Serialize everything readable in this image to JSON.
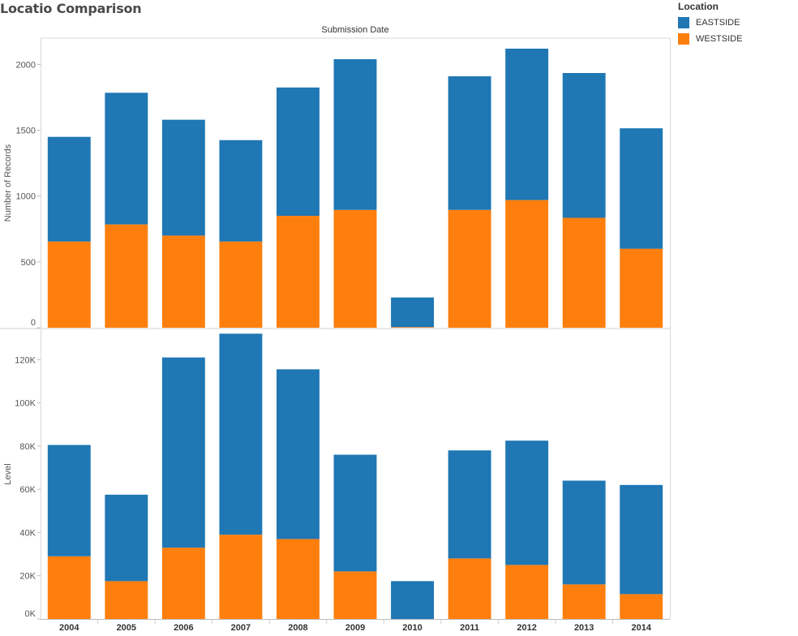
{
  "title": "Locatio Comparison",
  "legend": {
    "title": "Location",
    "items": [
      {
        "label": "EASTSIDE",
        "color": "#1f77b4"
      },
      {
        "label": "WESTSIDE",
        "color": "#ff7f0e"
      }
    ]
  },
  "chart_data": [
    {
      "type": "bar",
      "stacked": true,
      "title": "Submission Date",
      "xlabel": "",
      "ylabel": "Number of Records",
      "categories": [
        "2004",
        "2005",
        "2006",
        "2007",
        "2008",
        "2009",
        "2010",
        "2011",
        "2012",
        "2013",
        "2014"
      ],
      "series": [
        {
          "name": "WESTSIDE",
          "color": "#ff7f0e",
          "values": [
            655,
            785,
            700,
            655,
            850,
            895,
            5,
            895,
            970,
            835,
            600
          ]
        },
        {
          "name": "EASTSIDE",
          "color": "#1f77b4",
          "values": [
            795,
            1000,
            880,
            770,
            975,
            1145,
            225,
            1015,
            1150,
            1100,
            915
          ]
        }
      ],
      "ylim": [
        0,
        2200
      ],
      "yticks": [
        0,
        500,
        1000,
        1500,
        2000
      ],
      "ytick_labels": [
        "0",
        "500",
        "1000",
        "1500",
        "2000"
      ],
      "grid": false
    },
    {
      "type": "bar",
      "stacked": true,
      "xlabel": "",
      "ylabel": "Level",
      "categories": [
        "2004",
        "2005",
        "2006",
        "2007",
        "2008",
        "2009",
        "2010",
        "2011",
        "2012",
        "2013",
        "2014"
      ],
      "series": [
        {
          "name": "WESTSIDE",
          "color": "#ff7f0e",
          "values": [
            29000,
            17500,
            33000,
            39000,
            37000,
            22000,
            0,
            28000,
            25000,
            16000,
            11500
          ]
        },
        {
          "name": "EASTSIDE",
          "color": "#1f77b4",
          "values": [
            51500,
            40000,
            88000,
            93000,
            78500,
            54000,
            17500,
            50000,
            57500,
            48000,
            50500
          ]
        }
      ],
      "ylim": [
        0,
        134000
      ],
      "yticks": [
        0,
        20000,
        40000,
        60000,
        80000,
        100000,
        120000
      ],
      "ytick_labels": [
        "0K",
        "20K",
        "40K",
        "60K",
        "80K",
        "100K",
        "120K"
      ],
      "grid": false
    }
  ]
}
